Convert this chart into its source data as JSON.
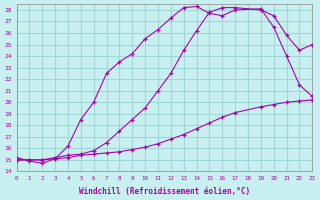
{
  "xlabel": "Windchill (Refroidissement éolien,°C)",
  "bg_color": "#c8f0f0",
  "grid_color": "#a0d8d8",
  "line_color": "#aa00aa",
  "xlim": [
    0,
    23
  ],
  "ylim": [
    14,
    28.5
  ],
  "yticks": [
    14,
    15,
    16,
    17,
    18,
    19,
    20,
    21,
    22,
    23,
    24,
    25,
    26,
    27,
    28
  ],
  "xticks": [
    0,
    1,
    2,
    3,
    4,
    5,
    6,
    7,
    8,
    9,
    10,
    11,
    12,
    13,
    14,
    15,
    16,
    17,
    18,
    19,
    20,
    21,
    22,
    23
  ],
  "series1_x": [
    0,
    1,
    2,
    3,
    4,
    5,
    6,
    7,
    8,
    9,
    10,
    11,
    12,
    13,
    14,
    15,
    16,
    17,
    19,
    20,
    21,
    22,
    23
  ],
  "series1_y": [
    15.2,
    14.9,
    14.7,
    15.1,
    16.2,
    18.5,
    20.0,
    22.5,
    23.5,
    24.2,
    25.5,
    26.3,
    27.3,
    28.2,
    28.3,
    27.7,
    27.5,
    28.0,
    28.1,
    26.5,
    24.0,
    21.5,
    20.5
  ],
  "series2_x": [
    0,
    1,
    2,
    3,
    4,
    5,
    6,
    7,
    8,
    9,
    10,
    11,
    12,
    13,
    14,
    15,
    16,
    17,
    19,
    20,
    21,
    22,
    23
  ],
  "series2_y": [
    15.0,
    15.0,
    15.0,
    15.2,
    15.4,
    15.5,
    15.8,
    16.5,
    17.5,
    18.5,
    19.5,
    21.0,
    22.5,
    24.5,
    26.2,
    27.8,
    28.2,
    28.2,
    28.0,
    27.5,
    25.8,
    24.5,
    25.0
  ],
  "series3_x": [
    0,
    1,
    2,
    3,
    4,
    5,
    6,
    7,
    8,
    9,
    10,
    11,
    12,
    13,
    14,
    15,
    16,
    17,
    19,
    20,
    21,
    22,
    23
  ],
  "series3_y": [
    15.0,
    15.0,
    15.0,
    15.1,
    15.2,
    15.4,
    15.5,
    15.6,
    15.7,
    15.9,
    16.1,
    16.4,
    16.8,
    17.2,
    17.7,
    18.2,
    18.7,
    19.1,
    19.6,
    19.8,
    20.0,
    20.1,
    20.2
  ]
}
